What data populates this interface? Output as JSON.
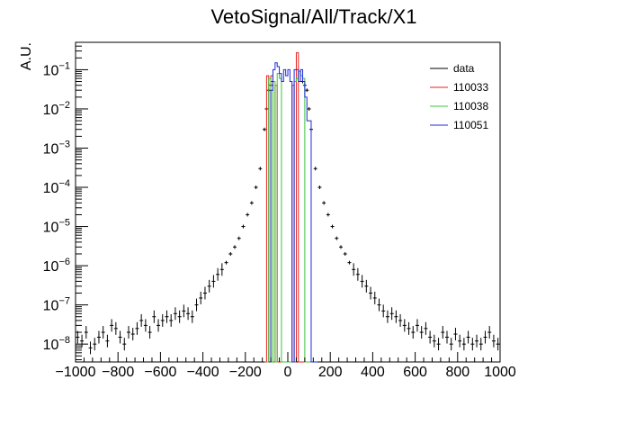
{
  "chart_data": {
    "type": "line",
    "title": "VetoSignal/All/Track/X1",
    "ylabel": "A.U.",
    "xlabel": "",
    "x_scale": "linear",
    "y_scale": "log",
    "xlim": [
      -1000,
      1000
    ],
    "ylim": [
      3.5e-09,
      0.5
    ],
    "x_ticks": [
      -1000,
      -800,
      -600,
      -400,
      -200,
      0,
      200,
      400,
      600,
      800,
      1000
    ],
    "x_tick_labels": [
      "−1000",
      "−800",
      "−600",
      "−400",
      "−200",
      "0",
      "200",
      "400",
      "600",
      "800",
      "1000"
    ],
    "y_ticks": [
      1e-08,
      1e-07,
      1e-06,
      1e-05,
      0.0001,
      0.001,
      0.01,
      0.1
    ],
    "y_tick_labels": [
      {
        "base": "10",
        "exp": "−8"
      },
      {
        "base": "10",
        "exp": "−7"
      },
      {
        "base": "10",
        "exp": "−6"
      },
      {
        "base": "10",
        "exp": "−5"
      },
      {
        "base": "10",
        "exp": "−4"
      },
      {
        "base": "10",
        "exp": "−3"
      },
      {
        "base": "10",
        "exp": "−2"
      },
      {
        "base": "10",
        "exp": "−1"
      }
    ],
    "grid": false,
    "legend_position": "top-right",
    "series": [
      {
        "name": "data",
        "color": "#000000",
        "style": "points-with-error",
        "x": [
          -990,
          -970,
          -950,
          -930,
          -910,
          -890,
          -870,
          -850,
          -830,
          -810,
          -790,
          -770,
          -750,
          -730,
          -710,
          -690,
          -670,
          -650,
          -630,
          -610,
          -590,
          -570,
          -550,
          -530,
          -510,
          -490,
          -470,
          -450,
          -430,
          -410,
          -390,
          -370,
          -350,
          -330,
          -310,
          -290,
          -270,
          -250,
          -230,
          -210,
          -190,
          -170,
          -150,
          -130,
          -110,
          -100,
          -90,
          -80,
          -70,
          70,
          80,
          90,
          100,
          110,
          130,
          150,
          170,
          190,
          210,
          230,
          250,
          270,
          290,
          310,
          330,
          350,
          370,
          390,
          410,
          430,
          450,
          470,
          490,
          510,
          530,
          550,
          570,
          590,
          610,
          630,
          650,
          670,
          690,
          710,
          730,
          750,
          770,
          790,
          810,
          830,
          850,
          870,
          890,
          910,
          930,
          950,
          970,
          990
        ],
        "y": [
          1.5e-08,
          1.2e-08,
          2e-08,
          8e-09,
          1e-08,
          1.5e-08,
          2e-08,
          1.2e-08,
          3e-08,
          2.5e-08,
          1.5e-08,
          1e-08,
          2e-08,
          1.8e-08,
          2.5e-08,
          4e-08,
          3e-08,
          2e-08,
          5e-08,
          3e-08,
          4e-08,
          5e-08,
          4e-08,
          6e-08,
          5e-08,
          7e-08,
          6e-08,
          5e-08,
          1e-07,
          1.5e-07,
          2e-07,
          3e-07,
          4e-07,
          6e-07,
          8e-07,
          1.2e-06,
          2e-06,
          3e-06,
          5e-06,
          1e-05,
          2e-05,
          4e-05,
          0.0001,
          0.0003,
          0.003,
          0.01,
          0.03,
          0.04,
          0.05,
          0.05,
          0.04,
          0.03,
          0.01,
          0.003,
          0.0003,
          0.0001,
          4e-05,
          2e-05,
          1e-05,
          5e-06,
          3e-06,
          2e-06,
          1.2e-06,
          8e-07,
          6e-07,
          4e-07,
          3e-07,
          2e-07,
          1.5e-07,
          1e-07,
          7e-08,
          5e-08,
          6e-08,
          5e-08,
          4e-08,
          3e-08,
          2.5e-08,
          2e-08,
          3e-08,
          2e-08,
          2.5e-08,
          1.5e-08,
          1.2e-08,
          1e-08,
          2e-08,
          1.5e-08,
          1e-08,
          1.8e-08,
          1.2e-08,
          1e-08,
          1.5e-08,
          1e-08,
          1.2e-08,
          1e-08,
          1.5e-08,
          2e-08,
          1.2e-08,
          1e-08
        ]
      },
      {
        "name": "110033",
        "color": "#e8221f",
        "style": "histogram",
        "x": [
          -110,
          -100,
          -90,
          -80,
          -70,
          -60,
          -50,
          -40,
          -30,
          -20,
          -10,
          0,
          10,
          20,
          30,
          40,
          50,
          60,
          70,
          80
        ],
        "y": [
          0,
          0.07,
          0,
          0.07,
          0,
          0.04,
          0,
          0,
          0,
          0,
          0,
          0,
          0,
          0.04,
          0,
          0.27,
          0,
          0,
          0,
          0
        ]
      },
      {
        "name": "110038",
        "color": "#3cc43c",
        "style": "histogram",
        "x": [
          -100,
          -90,
          -80,
          -70,
          -60,
          -50,
          -40,
          -30,
          -20,
          -10,
          0,
          10,
          20,
          30,
          40,
          50,
          60,
          70,
          80,
          90,
          100,
          110,
          120
        ],
        "y": [
          0,
          0.06,
          0,
          0.05,
          0,
          0.08,
          0.06,
          0,
          0,
          0,
          0,
          0,
          0,
          0.05,
          0.06,
          0.09,
          0.07,
          0.06,
          0,
          0,
          0,
          0,
          0
        ]
      },
      {
        "name": "110051",
        "color": "#1f2ad9",
        "style": "histogram",
        "x": [
          -90,
          -80,
          -70,
          -60,
          -50,
          -40,
          -30,
          -20,
          -10,
          0,
          10,
          20,
          30,
          40,
          50,
          60,
          70,
          80,
          90,
          100,
          110,
          120,
          130
        ],
        "y": [
          0,
          0.03,
          0.1,
          0.15,
          0.12,
          0.08,
          0.05,
          0.1,
          0.07,
          0.1,
          0.05,
          0,
          0.1,
          0.1,
          0.05,
          0.1,
          0.05,
          0.02,
          0.005,
          0.005,
          0,
          0,
          0
        ]
      }
    ]
  }
}
